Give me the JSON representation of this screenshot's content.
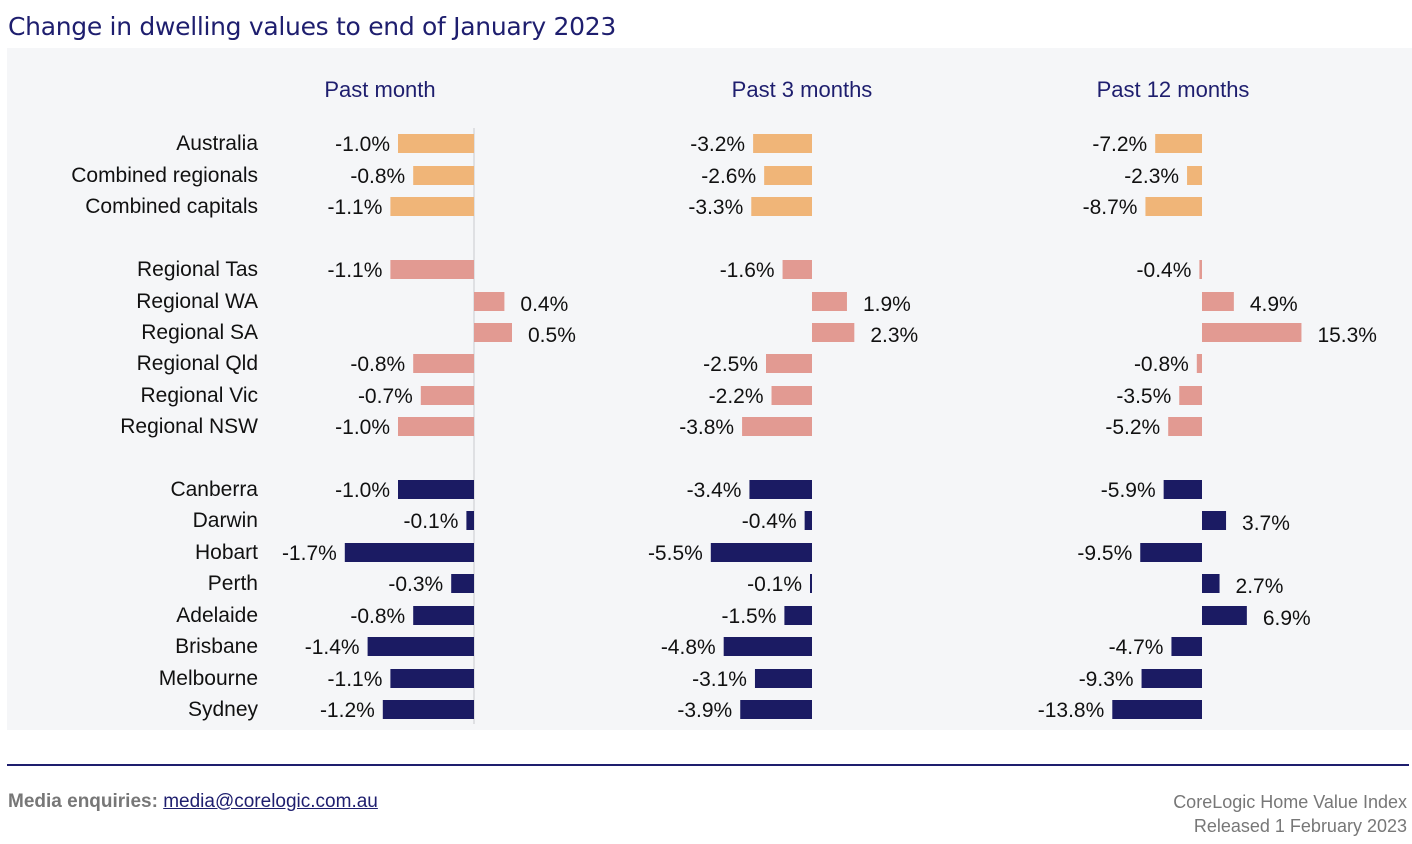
{
  "title": "Change in dwelling values to end of January 2023",
  "chart_data": {
    "type": "bar",
    "orientation": "horizontal",
    "categories": [
      "Australia",
      "Combined regionals",
      "Combined capitals",
      "Regional Tas",
      "Regional WA",
      "Regional SA",
      "Regional Qld",
      "Regional Vic",
      "Regional NSW",
      "Canberra",
      "Darwin",
      "Hobart",
      "Perth",
      "Adelaide",
      "Brisbane",
      "Melbourne",
      "Sydney"
    ],
    "groups": [
      "national",
      "national",
      "national",
      "regional",
      "regional",
      "regional",
      "regional",
      "regional",
      "regional",
      "capital",
      "capital",
      "capital",
      "capital",
      "capital",
      "capital",
      "capital",
      "capital"
    ],
    "group_colors": {
      "national": "#f0b578",
      "regional": "#e29a92",
      "capital": "#1b1b63"
    },
    "unit": "%",
    "series": [
      {
        "name": "Past month",
        "values": [
          -1.0,
          -0.8,
          -1.1,
          -1.1,
          0.4,
          0.5,
          -0.8,
          -0.7,
          -1.0,
          -1.0,
          -0.1,
          -1.7,
          -0.3,
          -0.8,
          -1.4,
          -1.1,
          -1.2
        ]
      },
      {
        "name": "Past 3 months",
        "values": [
          -3.2,
          -2.6,
          -3.3,
          -1.6,
          1.9,
          2.3,
          -2.5,
          -2.2,
          -3.8,
          -3.4,
          -0.4,
          -5.5,
          -0.1,
          -1.5,
          -4.8,
          -3.1,
          -3.9
        ]
      },
      {
        "name": "Past 12 months",
        "values": [
          -7.2,
          -2.3,
          -8.7,
          -0.4,
          4.9,
          15.3,
          -0.8,
          -3.5,
          -5.2,
          -5.9,
          3.7,
          -9.5,
          2.7,
          6.9,
          -4.7,
          -9.3,
          -13.8
        ]
      }
    ]
  },
  "footer": {
    "media_label": "Media enquiries:",
    "media_email": "media@corelogic.com.au",
    "source_line1": "CoreLogic Home Value Index",
    "source_line2": "Released 1 February 2023"
  }
}
